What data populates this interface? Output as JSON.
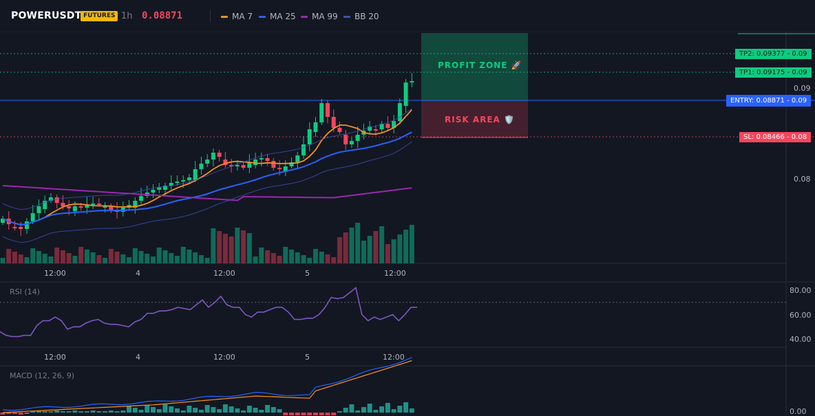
{
  "header": {
    "symbol": "POWERUSDT",
    "badge": "FUTURES",
    "timeframe": "1h",
    "price": "0.08871",
    "indicators": [
      {
        "label": "MA 7",
        "color": "#f7931a"
      },
      {
        "label": "MA 25",
        "color": "#2962ff"
      },
      {
        "label": "MA 99",
        "color": "#9c27b0"
      },
      {
        "label": "BB 20",
        "color": "#3f51b5"
      }
    ]
  },
  "price_axis": {
    "tick_high": "0.09",
    "tick_low": "0.08"
  },
  "levels": {
    "tp2": "TP2: 0.09377",
    "tp2_short": "0.09",
    "tp1": "TP1: 0.09175",
    "tp1_short": "0.09",
    "entry": "ENTRY: 0.08871",
    "entry_short": "0.09",
    "sl": "SL: 0.08466",
    "sl_short": "0.08"
  },
  "zones": {
    "profit": "PROFIT ZONE 🚀",
    "risk": "RISK AREA 🛡️"
  },
  "time_axis": [
    "12:00",
    "4",
    "12:00",
    "5",
    "12:00"
  ],
  "rsi": {
    "title": "RSI (14)",
    "ticks": [
      "80.00",
      "60.00",
      "40.00"
    ],
    "values": [
      46,
      43,
      42,
      42,
      43,
      43,
      51,
      55,
      55,
      58,
      55,
      48,
      50,
      50,
      53,
      55,
      56,
      53,
      52,
      52,
      51,
      50,
      54,
      56,
      61,
      61,
      63,
      63,
      64,
      66,
      65,
      64,
      68,
      72,
      66,
      70,
      75,
      68,
      66,
      66,
      60,
      58,
      62,
      62,
      64,
      66,
      66,
      62,
      56,
      56,
      57,
      57,
      60,
      66,
      74,
      73,
      74,
      78,
      82,
      60,
      55,
      58,
      56,
      58,
      60,
      55,
      60,
      66,
      66
    ]
  },
  "macd": {
    "title": "MACD (12, 26, 9)",
    "tick": "0.00"
  },
  "colors": {
    "up": "#0ecb81",
    "down": "#f6465d",
    "background": "#131722",
    "grid": "#2a2e39",
    "entry": "#2962ff"
  }
}
